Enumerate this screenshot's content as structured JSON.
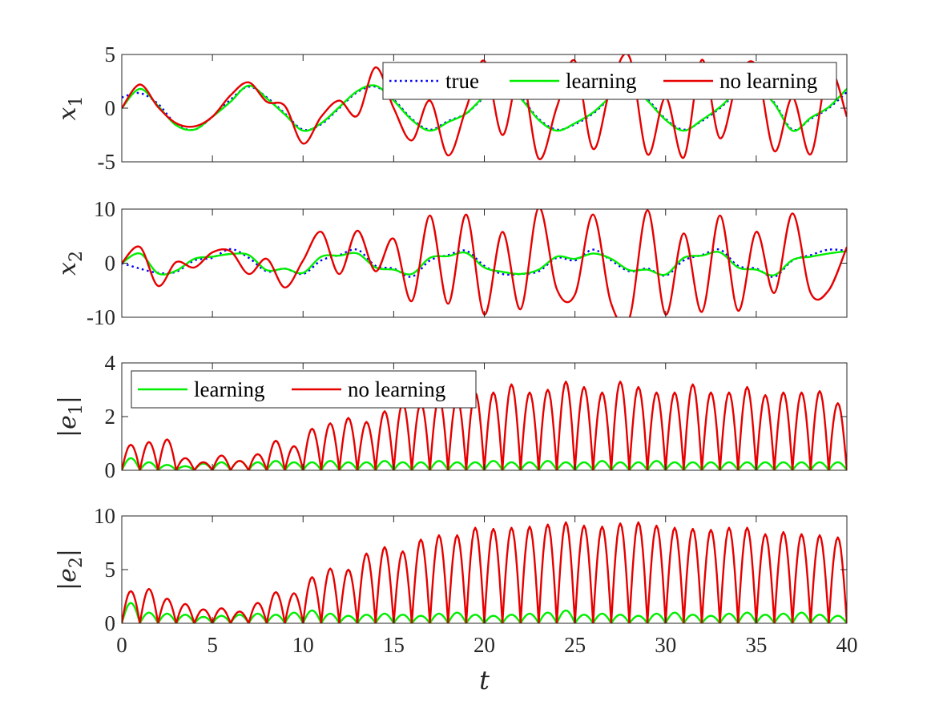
{
  "colors": {
    "true": "#0000ff",
    "learning": "#00ee00",
    "no_learning": "#e60000",
    "axis": "#262626"
  },
  "chart_data": [
    {
      "type": "line",
      "ylabel": "x1",
      "ylabel_main": "x",
      "ylabel_sub": "1",
      "xlim": [
        0,
        40
      ],
      "ylim": [
        -5,
        5
      ],
      "yticks": [
        5,
        0,
        -5
      ],
      "ytick_labels": [
        "5",
        "0",
        "-5"
      ],
      "legend": {
        "placement": "top-right",
        "entries": [
          "true",
          "learning",
          "no learning"
        ]
      },
      "series": [
        {
          "name": "true",
          "style": "dotted",
          "x": [
            0,
            1,
            2,
            3,
            4,
            5,
            6,
            7,
            8,
            9,
            10,
            11,
            12,
            13,
            14,
            15,
            16,
            17,
            18,
            19,
            20,
            21,
            22,
            23,
            24,
            25,
            26,
            27,
            28,
            29,
            30,
            31,
            32,
            33,
            34,
            35,
            36,
            37,
            38,
            39,
            40
          ],
          "y": [
            1.0,
            1.4,
            0.4,
            -1.5,
            -2.0,
            -0.8,
            0.8,
            2.0,
            1.0,
            -0.5,
            -2.0,
            -1.5,
            0,
            1.5,
            2.0,
            0.8,
            -1.0,
            -2.0,
            -1.2,
            -0.5,
            1.0,
            2.0,
            1.0,
            -1.0,
            -2.0,
            -1.5,
            -0.5,
            1.0,
            2.0,
            0.8,
            -1.0,
            -2.0,
            -1.2,
            0,
            1.5,
            2.0,
            0.5,
            -2.0,
            -1.0,
            0,
            1.5
          ]
        },
        {
          "name": "learning",
          "style": "solid",
          "x": [
            0,
            1,
            2,
            3,
            4,
            5,
            6,
            7,
            8,
            9,
            10,
            11,
            12,
            13,
            14,
            15,
            16,
            17,
            18,
            19,
            20,
            21,
            22,
            23,
            24,
            25,
            26,
            27,
            28,
            29,
            30,
            31,
            32,
            33,
            34,
            35,
            36,
            37,
            38,
            39,
            40
          ],
          "y": [
            0,
            1.8,
            0.2,
            -1.6,
            -2.0,
            -0.8,
            0.6,
            2.1,
            0.9,
            -0.6,
            -2.1,
            -1.4,
            0.1,
            1.6,
            2.1,
            0.7,
            -1.1,
            -2.1,
            -1.3,
            -0.5,
            1.1,
            2.1,
            0.9,
            -1.1,
            -2.1,
            -1.4,
            -0.4,
            1.1,
            2.1,
            0.7,
            -1.1,
            -2.1,
            -1.1,
            0.1,
            1.6,
            2.0,
            0.4,
            -2.1,
            -0.9,
            0.1,
            1.8
          ]
        },
        {
          "name": "no learning",
          "style": "solid",
          "x": [
            0,
            1,
            2,
            3,
            4,
            5,
            6,
            7,
            8,
            9,
            10,
            11,
            12,
            13,
            14,
            15,
            16,
            17,
            18,
            19,
            20,
            21,
            22,
            23,
            24,
            25,
            26,
            27,
            28,
            29,
            30,
            31,
            32,
            33,
            34,
            35,
            36,
            37,
            38,
            39,
            40
          ],
          "y": [
            0,
            2.2,
            0.1,
            -1.4,
            -1.7,
            -0.8,
            1.2,
            2.4,
            0.6,
            0.2,
            -3.3,
            -0.8,
            0.7,
            -0.7,
            3.8,
            0,
            -3.0,
            0.7,
            -4.4,
            0,
            4.4,
            -2.5,
            3.5,
            -4.7,
            0.1,
            4.4,
            -3.8,
            2.2,
            4.8,
            -4.3,
            1.0,
            -4.6,
            4.5,
            -2.8,
            2.8,
            3.9,
            -4.0,
            1.0,
            -4.3,
            3.6,
            -0.8
          ]
        }
      ]
    },
    {
      "type": "line",
      "ylabel": "x2",
      "ylabel_main": "x",
      "ylabel_sub": "2",
      "xlim": [
        0,
        40
      ],
      "ylim": [
        -10,
        10
      ],
      "yticks": [
        10,
        0,
        -10
      ],
      "ytick_labels": [
        "10",
        "0",
        "-10"
      ],
      "series": [
        {
          "name": "true",
          "style": "dotted",
          "x": [
            0,
            1,
            2,
            3,
            4,
            5,
            6,
            7,
            8,
            9,
            10,
            11,
            12,
            13,
            14,
            15,
            16,
            17,
            18,
            19,
            20,
            21,
            22,
            23,
            24,
            25,
            26,
            27,
            28,
            29,
            30,
            31,
            32,
            33,
            34,
            35,
            36,
            37,
            38,
            39,
            40
          ],
          "y": [
            0,
            -1.0,
            -1.8,
            -1.6,
            0.5,
            1.0,
            2.6,
            1.0,
            -1.5,
            -1.0,
            -2.0,
            0.5,
            1.5,
            2.5,
            -0.5,
            -1.0,
            -2.5,
            0.5,
            1.5,
            2.3,
            -0.5,
            -2.0,
            -2.0,
            -1.5,
            1.0,
            0.5,
            2.5,
            0.5,
            -1.5,
            -1.0,
            -2.3,
            0.5,
            1.5,
            2.5,
            -0.5,
            -1.0,
            -2.5,
            0.5,
            1.5,
            2.5,
            2.3
          ]
        },
        {
          "name": "learning",
          "style": "solid",
          "x": [
            0,
            1,
            2,
            3,
            4,
            5,
            6,
            7,
            8,
            9,
            10,
            11,
            12,
            13,
            14,
            15,
            16,
            17,
            18,
            19,
            20,
            21,
            22,
            23,
            24,
            25,
            26,
            27,
            28,
            29,
            30,
            31,
            32,
            33,
            34,
            35,
            36,
            37,
            38,
            39,
            40
          ],
          "y": [
            0,
            1.8,
            -1.9,
            -1.4,
            0.8,
            1.2,
            1.7,
            1.5,
            -1.3,
            -1.0,
            -1.8,
            1.2,
            1.4,
            1.8,
            -0.8,
            -1.2,
            -2.0,
            1.0,
            1.3,
            1.9,
            -0.8,
            -1.6,
            -2.0,
            -1.2,
            1.2,
            0.8,
            1.8,
            0.8,
            -1.3,
            -1.2,
            -2.1,
            1.0,
            1.4,
            2.0,
            -0.8,
            -1.2,
            -2.2,
            0.6,
            1.2,
            1.8,
            2.2
          ]
        },
        {
          "name": "no learning",
          "style": "solid",
          "x": [
            0,
            1,
            2,
            3,
            4,
            5,
            6,
            7,
            8,
            9,
            10,
            11,
            12,
            13,
            14,
            15,
            16,
            17,
            18,
            19,
            20,
            21,
            22,
            23,
            24,
            25,
            26,
            27,
            28,
            29,
            30,
            31,
            32,
            33,
            34,
            35,
            36,
            37,
            38,
            39,
            40
          ],
          "y": [
            0,
            3.0,
            -4.2,
            0.2,
            -0.8,
            2.0,
            2.2,
            -2.0,
            0.8,
            -4.5,
            0.5,
            5.8,
            -2.0,
            6.0,
            -1.5,
            4.5,
            -7.0,
            8.8,
            -7.5,
            9.0,
            -9.5,
            5.8,
            -8.5,
            10.3,
            -4.8,
            -5.8,
            9.0,
            -7.5,
            -10.2,
            9.8,
            -9.5,
            5.5,
            -9.0,
            8.8,
            -8.8,
            5.8,
            -5.5,
            9.2,
            -5.5,
            -5.0,
            3.0
          ]
        }
      ]
    },
    {
      "type": "line",
      "ylabel": "|e1|",
      "ylabel_main": "e",
      "ylabel_sub": "1",
      "xlim": [
        0,
        40
      ],
      "ylim": [
        0,
        4
      ],
      "yticks": [
        4,
        2,
        0
      ],
      "ytick_labels": [
        "4",
        "2",
        "0"
      ],
      "legend": {
        "placement": "top-left",
        "entries": [
          "learning",
          "no learning"
        ]
      },
      "series": [
        {
          "name": "learning",
          "style": "solid",
          "peaks": [
            0.45,
            0.3,
            0.2,
            0.15,
            0.25,
            0.3,
            0.35,
            0.3,
            0.35,
            0.3,
            0.3,
            0.35,
            0.3,
            0.3,
            0.35,
            0.3,
            0.3,
            0.35,
            0.3,
            0.3,
            0.35,
            0.3,
            0.3,
            0.35,
            0.3,
            0.3,
            0.35,
            0.3,
            0.3,
            0.35,
            0.3,
            0.3,
            0.3,
            0.3,
            0.3,
            0.3,
            0.3,
            0.3,
            0.3,
            0.3
          ]
        },
        {
          "name": "no learning",
          "style": "solid",
          "peaks": [
            0.95,
            1.05,
            1.15,
            0.45,
            0.3,
            0.55,
            0.35,
            0.6,
            1.1,
            0.9,
            1.55,
            1.75,
            1.95,
            1.8,
            2.2,
            2.5,
            2.5,
            2.7,
            2.7,
            2.9,
            2.9,
            3.2,
            2.9,
            3.0,
            3.3,
            3.1,
            2.9,
            3.3,
            3.1,
            2.9,
            2.9,
            3.2,
            2.9,
            2.9,
            3.1,
            2.8,
            2.9,
            2.9,
            2.95,
            2.5
          ]
        }
      ]
    },
    {
      "type": "line",
      "ylabel": "|e2|",
      "ylabel_main": "e",
      "ylabel_sub": "2",
      "xlim": [
        0,
        40
      ],
      "ylim": [
        0,
        10
      ],
      "yticks": [
        10,
        5,
        0
      ],
      "ytick_labels": [
        "10",
        "5",
        "0"
      ],
      "xticks": [
        0,
        5,
        10,
        15,
        20,
        25,
        30,
        35,
        40
      ],
      "xtick_labels": [
        "0",
        "5",
        "10",
        "15",
        "20",
        "25",
        "30",
        "35",
        "40"
      ],
      "xlabel": "t",
      "series": [
        {
          "name": "learning",
          "style": "solid",
          "peaks": [
            1.9,
            1.0,
            0.9,
            0.8,
            0.6,
            0.7,
            0.8,
            0.9,
            0.8,
            1.0,
            1.2,
            0.9,
            0.7,
            0.8,
            0.9,
            0.8,
            0.7,
            0.9,
            1.0,
            0.8,
            0.7,
            0.8,
            0.9,
            1.0,
            1.2,
            0.8,
            0.9,
            0.8,
            0.7,
            0.9,
            1.0,
            0.8,
            0.7,
            0.9,
            1.0,
            0.8,
            0.9,
            1.0,
            0.8,
            0.7
          ]
        },
        {
          "name": "no learning",
          "style": "solid",
          "peaks": [
            3.0,
            3.2,
            2.3,
            1.8,
            1.3,
            1.4,
            1.1,
            1.9,
            2.9,
            2.8,
            4.3,
            5.1,
            5.0,
            6.5,
            7.1,
            6.7,
            7.8,
            8.2,
            8.2,
            8.9,
            8.8,
            8.9,
            9.0,
            9.2,
            9.4,
            9.1,
            9.0,
            9.3,
            9.4,
            9.1,
            8.9,
            8.8,
            8.7,
            8.9,
            8.9,
            8.3,
            8.5,
            8.3,
            8.2,
            8.0
          ]
        }
      ]
    }
  ]
}
